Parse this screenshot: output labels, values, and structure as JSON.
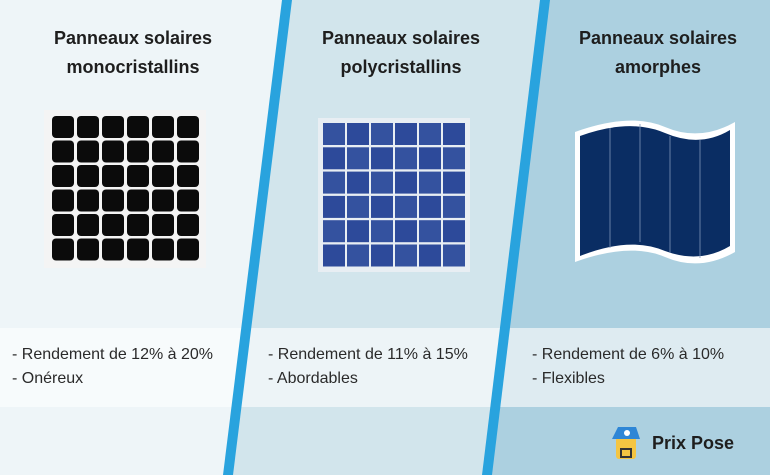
{
  "columns": [
    {
      "title_line1": "Panneaux solaires",
      "title_line2": "monocristallins",
      "features": [
        "- Rendement de 12% à 20%",
        "- Onéreux"
      ]
    },
    {
      "title_line1": "Panneaux solaires",
      "title_line2": "polycristallins",
      "features": [
        "- Rendement de 11% à 15%",
        "- Abordables"
      ]
    },
    {
      "title_line1": "Panneaux solaires",
      "title_line2": "amorphes",
      "features": [
        "- Rendement de 6% à 10%",
        "- Flexibles"
      ]
    }
  ],
  "brand": {
    "name": "Prix Pose"
  },
  "colors": {
    "divider": "#29a3de",
    "col1_bg": "#eef5f8",
    "col2_bg": "#d2e5ec",
    "col3_bg": "#acd0e0"
  }
}
